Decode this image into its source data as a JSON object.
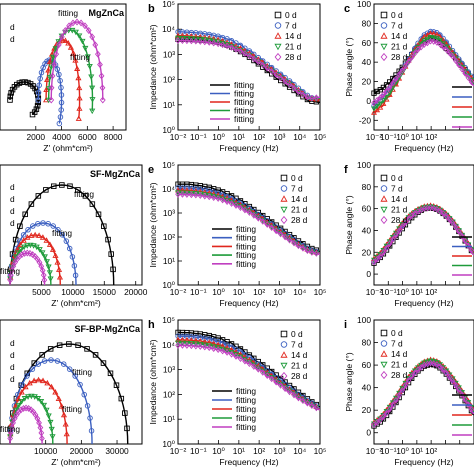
{
  "colors": {
    "0 d": "#000000",
    "7 d": "#3b5fc0",
    "14 d": "#e0261d",
    "21 d": "#1e9b3a",
    "28 d": "#c03fc0"
  },
  "series_names": [
    "0 d",
    "7 d",
    "14 d",
    "21 d",
    "28 d"
  ],
  "markers": [
    "square",
    "circle",
    "triangle-up",
    "triangle-down",
    "diamond"
  ],
  "fit_label": "fitting",
  "chart_data": [
    {
      "id": "a",
      "type": "scatter",
      "panel_label": "",
      "title": "MgZnCa",
      "xlabel": "Z' (ohm*cm²)",
      "ylabel": "",
      "xlim": [
        0,
        9000
      ],
      "xticks": [
        2000,
        4000,
        6000,
        8000
      ],
      "xticklabels": [
        "2000",
        "4000",
        "6000",
        "8000"
      ],
      "legend_partial": [
        "d",
        "d"
      ],
      "fitting_labels": [
        "fitting",
        "fitting"
      ],
      "series": [
        {
          "name": "0 d",
          "x": [
            0,
            2200
          ],
          "kind": "arc-spiral"
        },
        {
          "name": "7 d",
          "x": [
            2200,
            4000
          ],
          "kind": "arc"
        },
        {
          "name": "14 d",
          "x": [
            2800,
            5400
          ],
          "kind": "arc"
        },
        {
          "name": "21 d",
          "x": [
            3000,
            6400
          ],
          "kind": "arc"
        },
        {
          "name": "28 d",
          "x": [
            3200,
            7200
          ],
          "kind": "arc"
        }
      ]
    },
    {
      "id": "b",
      "type": "line",
      "panel_label": "b",
      "title": "",
      "xlabel": "Frequency (Hz)",
      "ylabel": "Impedance (ohm*cm²)",
      "xscale": "log",
      "yscale": "log",
      "xlim": [
        0.01,
        100000
      ],
      "ylim": [
        1,
        100000
      ],
      "xticklabels": [
        "10⁻²",
        "10⁻¹",
        "10⁰",
        "10¹",
        "10²",
        "10³",
        "10⁴",
        "10⁵"
      ],
      "yticklabels": [
        "10⁰",
        "10¹",
        "10²",
        "10³",
        "10⁴",
        "10⁵"
      ],
      "log_freq": [
        -2,
        -1.5,
        -1,
        -0.5,
        0,
        0.5,
        1,
        1.5,
        2,
        2.5,
        3,
        3.5,
        4,
        4.5,
        5
      ],
      "series": [
        {
          "name": "0 d",
          "log_z": [
            3.6,
            3.6,
            3.58,
            3.55,
            3.48,
            3.35,
            3.15,
            2.9,
            2.6,
            2.3,
            2.0,
            1.7,
            1.4,
            1.15,
            1.1
          ]
        },
        {
          "name": "7 d",
          "log_z": [
            3.9,
            3.88,
            3.85,
            3.8,
            3.72,
            3.6,
            3.4,
            3.15,
            2.85,
            2.55,
            2.25,
            1.95,
            1.62,
            1.3,
            1.2
          ]
        },
        {
          "name": "14 d",
          "log_z": [
            3.75,
            3.73,
            3.7,
            3.65,
            3.58,
            3.45,
            3.28,
            3.05,
            2.78,
            2.48,
            2.18,
            1.88,
            1.55,
            1.25,
            1.2
          ]
        },
        {
          "name": "21 d",
          "log_z": [
            3.65,
            3.64,
            3.62,
            3.58,
            3.5,
            3.38,
            3.2,
            2.98,
            2.7,
            2.42,
            2.12,
            1.82,
            1.5,
            1.22,
            1.25
          ]
        },
        {
          "name": "28 d",
          "log_z": [
            3.55,
            3.54,
            3.52,
            3.48,
            3.42,
            3.32,
            3.16,
            2.95,
            2.68,
            2.4,
            2.1,
            1.8,
            1.48,
            1.25,
            1.3
          ]
        }
      ]
    },
    {
      "id": "c",
      "type": "line",
      "panel_label": "c",
      "title": "",
      "xlabel": "Frequency (Hz)",
      "ylabel": "Phase angle (°)",
      "xscale": "log",
      "xlim": [
        0.01,
        100000
      ],
      "ylim": [
        -30,
        100
      ],
      "yticks": [
        -20,
        0,
        20,
        40,
        60,
        80,
        100
      ],
      "xticklabels": [
        "10⁻²",
        "10⁻¹",
        "10⁰",
        "10¹",
        "10²"
      ],
      "log_freq": [
        -2,
        -1.5,
        -1,
        -0.5,
        0,
        0.5,
        1,
        1.5,
        2,
        2.5,
        3,
        3.5,
        4,
        4.5,
        5
      ],
      "series": [
        {
          "name": "0 d",
          "phase": [
            8,
            12,
            18,
            26,
            35,
            45,
            55,
            62,
            65,
            62,
            55,
            48,
            40,
            30,
            20
          ]
        },
        {
          "name": "7 d",
          "phase": [
            -5,
            2,
            10,
            20,
            32,
            45,
            58,
            68,
            72,
            70,
            62,
            52,
            42,
            32,
            22
          ]
        },
        {
          "name": "14 d",
          "phase": [
            -12,
            -6,
            4,
            16,
            30,
            44,
            56,
            66,
            70,
            68,
            60,
            50,
            40,
            30,
            20
          ]
        },
        {
          "name": "21 d",
          "phase": [
            -8,
            -2,
            6,
            18,
            30,
            42,
            54,
            62,
            66,
            64,
            57,
            48,
            38,
            28,
            18
          ]
        },
        {
          "name": "28 d",
          "phase": [
            -2,
            4,
            12,
            22,
            32,
            42,
            52,
            58,
            62,
            60,
            54,
            46,
            36,
            26,
            16
          ]
        }
      ]
    },
    {
      "id": "d",
      "type": "scatter",
      "panel_label": "",
      "title": "SF-MgZnCa",
      "xlabel": "Z' (ohm*cm²)",
      "ylabel": "",
      "xlim": [
        0,
        21000
      ],
      "xticks": [
        5000,
        10000,
        15000,
        20000
      ],
      "xticklabels": [
        "5000",
        "10000",
        "15000",
        "20000"
      ],
      "legend_partial": [
        "d",
        "d",
        "d",
        "d"
      ],
      "fitting_labels": [
        "fitting",
        "fitting",
        "fitting"
      ],
      "series": [
        {
          "name": "0 d",
          "x": [
            0,
            16500
          ],
          "kind": "arc"
        },
        {
          "name": "7 d",
          "x": [
            0,
            10500
          ],
          "kind": "arc"
        },
        {
          "name": "14 d",
          "x": [
            0,
            8000
          ],
          "kind": "arc"
        },
        {
          "name": "21 d",
          "x": [
            0,
            6500
          ],
          "kind": "arc"
        },
        {
          "name": "28 d",
          "x": [
            0,
            5500
          ],
          "kind": "arc"
        }
      ]
    },
    {
      "id": "e",
      "type": "line",
      "panel_label": "e",
      "title": "",
      "xlabel": "Frequency (Hz)",
      "ylabel": "Impedance (ohm*cm²)",
      "xscale": "log",
      "yscale": "log",
      "xlim": [
        0.01,
        100000
      ],
      "ylim": [
        1,
        100000
      ],
      "xticklabels": [
        "10⁻²",
        "10⁻¹",
        "10⁰",
        "10¹",
        "10²",
        "10³",
        "10⁴",
        "10⁵"
      ],
      "yticklabels": [
        "10⁰",
        "10¹",
        "10²",
        "10³",
        "10⁴",
        "10⁵"
      ],
      "log_freq": [
        -2,
        -1.5,
        -1,
        -0.5,
        0,
        0.5,
        1,
        1.5,
        2,
        2.5,
        3,
        3.5,
        4,
        4.5,
        5
      ],
      "series": [
        {
          "name": "0 d",
          "log_z": [
            4.2,
            4.2,
            4.15,
            4.08,
            3.95,
            3.78,
            3.55,
            3.28,
            3.0,
            2.7,
            2.4,
            2.1,
            1.8,
            1.55,
            1.4
          ]
        },
        {
          "name": "7 d",
          "log_z": [
            4.05,
            4.04,
            4.0,
            3.93,
            3.82,
            3.66,
            3.45,
            3.2,
            2.92,
            2.62,
            2.32,
            2.02,
            1.72,
            1.48,
            1.35
          ]
        },
        {
          "name": "14 d",
          "log_z": [
            3.95,
            3.94,
            3.9,
            3.84,
            3.74,
            3.58,
            3.38,
            3.14,
            2.86,
            2.56,
            2.26,
            1.96,
            1.66,
            1.43,
            1.32
          ]
        },
        {
          "name": "21 d",
          "log_z": [
            3.85,
            3.84,
            3.81,
            3.75,
            3.66,
            3.51,
            3.32,
            3.08,
            2.8,
            2.5,
            2.2,
            1.9,
            1.62,
            1.4,
            1.3
          ]
        },
        {
          "name": "28 d",
          "log_z": [
            3.78,
            3.77,
            3.74,
            3.68,
            3.6,
            3.45,
            3.26,
            3.03,
            2.76,
            2.46,
            2.16,
            1.87,
            1.6,
            1.38,
            1.28
          ]
        }
      ]
    },
    {
      "id": "f",
      "type": "line",
      "panel_label": "f",
      "title": "",
      "xlabel": "Frequency (Hz)",
      "ylabel": "Phase angle (°)",
      "xscale": "log",
      "xlim": [
        0.01,
        100000
      ],
      "ylim": [
        -10,
        100
      ],
      "yticks": [
        0,
        20,
        40,
        60,
        80,
        100
      ],
      "xticklabels": [
        "10⁻²",
        "10⁻¹",
        "10⁰",
        "10¹",
        "10²"
      ],
      "log_freq": [
        -2,
        -1.5,
        -1,
        -0.5,
        0,
        0.5,
        1,
        1.5,
        2,
        2.5,
        3,
        3.5,
        4,
        4.5,
        5
      ],
      "series": [
        {
          "name": "0 d",
          "phase": [
            10,
            16,
            24,
            33,
            42,
            50,
            56,
            60,
            61,
            59,
            54,
            47,
            38,
            28,
            18
          ]
        },
        {
          "name": "7 d",
          "phase": [
            12,
            18,
            27,
            36,
            45,
            53,
            58,
            61,
            62,
            60,
            55,
            48,
            39,
            29,
            19
          ]
        },
        {
          "name": "14 d",
          "phase": [
            14,
            20,
            29,
            38,
            47,
            54,
            59,
            62,
            63,
            61,
            56,
            49,
            40,
            30,
            20
          ]
        },
        {
          "name": "21 d",
          "phase": [
            13,
            19,
            28,
            37,
            46,
            53,
            58,
            61,
            62,
            60,
            55,
            48,
            39,
            29,
            19
          ]
        },
        {
          "name": "28 d",
          "phase": [
            11,
            17,
            26,
            35,
            44,
            52,
            57,
            60,
            61,
            59,
            54,
            47,
            38,
            28,
            18
          ]
        }
      ]
    },
    {
      "id": "g",
      "type": "scatter",
      "panel_label": "",
      "title": "SF-BP-MgZnCa",
      "xlabel": "Z' (ohm*cm²)",
      "ylabel": "",
      "xlim": [
        0,
        37000
      ],
      "xticks": [
        10000,
        20000,
        30000
      ],
      "xticklabels": [
        "10000",
        "20000",
        "30000"
      ],
      "legend_partial": [
        "d",
        "d",
        "d",
        "d"
      ],
      "fitting_labels": [
        "fitting",
        "fitting",
        "fitting"
      ],
      "series": [
        {
          "name": "0 d",
          "x": [
            0,
            33000
          ],
          "kind": "arc"
        },
        {
          "name": "7 d",
          "x": [
            0,
            23000
          ],
          "kind": "arc"
        },
        {
          "name": "14 d",
          "x": [
            0,
            16000
          ],
          "kind": "arc"
        },
        {
          "name": "21 d",
          "x": [
            0,
            12000
          ],
          "kind": "arc"
        },
        {
          "name": "28 d",
          "x": [
            0,
            9000
          ],
          "kind": "arc"
        }
      ]
    },
    {
      "id": "h",
      "type": "line",
      "panel_label": "h",
      "title": "",
      "xlabel": "Frequency (Hz)",
      "ylabel": "Impedance (ohm*cm²)",
      "xscale": "log",
      "yscale": "log",
      "xlim": [
        0.01,
        100000
      ],
      "ylim": [
        1,
        100000
      ],
      "xticklabels": [
        "10⁻²",
        "10⁻¹",
        "10⁰",
        "10¹",
        "10²",
        "10³",
        "10⁴",
        "10⁵"
      ],
      "yticklabels": [
        "10⁰",
        "10¹",
        "10²",
        "10³",
        "10⁴",
        "10⁵"
      ],
      "log_freq": [
        -2,
        -1.5,
        -1,
        -0.5,
        0,
        0.5,
        1,
        1.5,
        2,
        2.5,
        3,
        3.5,
        4,
        4.5,
        5
      ],
      "series": [
        {
          "name": "0 d",
          "log_z": [
            4.5,
            4.49,
            4.45,
            4.38,
            4.27,
            4.1,
            3.88,
            3.6,
            3.3,
            3.0,
            2.68,
            2.36,
            2.05,
            1.75,
            1.5
          ]
        },
        {
          "name": "7 d",
          "log_z": [
            4.35,
            4.34,
            4.3,
            4.24,
            4.13,
            3.97,
            3.76,
            3.5,
            3.2,
            2.9,
            2.58,
            2.27,
            1.97,
            1.7,
            1.45
          ]
        },
        {
          "name": "14 d",
          "log_z": [
            4.2,
            4.19,
            4.16,
            4.1,
            4.0,
            3.85,
            3.65,
            3.4,
            3.12,
            2.82,
            2.5,
            2.2,
            1.9,
            1.65,
            1.42
          ]
        },
        {
          "name": "21 d",
          "log_z": [
            4.08,
            4.07,
            4.04,
            3.98,
            3.89,
            3.75,
            3.56,
            3.32,
            3.05,
            2.76,
            2.45,
            2.15,
            1.86,
            1.62,
            1.4
          ]
        },
        {
          "name": "28 d",
          "log_z": [
            3.98,
            3.97,
            3.94,
            3.89,
            3.8,
            3.67,
            3.48,
            3.25,
            2.99,
            2.7,
            2.4,
            2.1,
            1.82,
            1.59,
            1.38
          ]
        }
      ]
    },
    {
      "id": "i",
      "type": "line",
      "panel_label": "i",
      "title": "",
      "xlabel": "Frequency (Hz)",
      "ylabel": "Phase angle (°)",
      "xscale": "log",
      "xlim": [
        0.01,
        100000
      ],
      "ylim": [
        -10,
        100
      ],
      "yticks": [
        0,
        20,
        40,
        60,
        80,
        100
      ],
      "xticklabels": [
        "10⁻²",
        "10⁻¹",
        "10⁰",
        "10¹",
        "10²"
      ],
      "log_freq": [
        -2,
        -1.5,
        -1,
        -0.5,
        0,
        0.5,
        1,
        1.5,
        2,
        2.5,
        3,
        3.5,
        4,
        4.5,
        5
      ],
      "series": [
        {
          "name": "0 d",
          "phase": [
            6,
            10,
            17,
            26,
            36,
            46,
            54,
            59,
            61,
            59,
            53,
            45,
            36,
            26,
            16
          ]
        },
        {
          "name": "7 d",
          "phase": [
            8,
            13,
            20,
            29,
            39,
            49,
            56,
            61,
            63,
            61,
            55,
            47,
            38,
            28,
            18
          ]
        },
        {
          "name": "14 d",
          "phase": [
            9,
            14,
            22,
            31,
            41,
            51,
            58,
            63,
            65,
            63,
            57,
            49,
            40,
            30,
            20
          ]
        },
        {
          "name": "21 d",
          "phase": [
            8,
            13,
            21,
            30,
            40,
            50,
            57,
            62,
            64,
            62,
            56,
            48,
            39,
            29,
            19
          ]
        },
        {
          "name": "28 d",
          "phase": [
            7,
            12,
            19,
            28,
            38,
            48,
            55,
            60,
            62,
            60,
            54,
            46,
            37,
            27,
            17
          ]
        }
      ]
    }
  ]
}
